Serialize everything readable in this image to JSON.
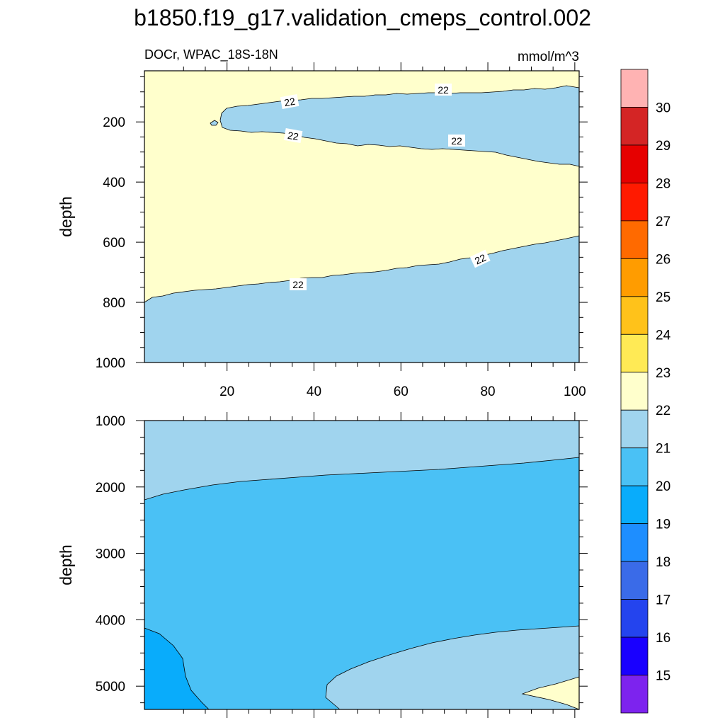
{
  "chart_data": {
    "type": "contour",
    "title": "b1850.f19_g17.validation_cmeps_control.002",
    "left_label": "DOCr, WPAC_18S-18N",
    "units_label": "mmol/m^3",
    "ylabel": "depth",
    "x_ticks": [
      20,
      40,
      60,
      80,
      100
    ],
    "x_range": [
      1,
      101
    ],
    "top_panel": {
      "y_ticks": [
        200,
        400,
        600,
        800,
        1000
      ],
      "y_range": [
        30,
        1000
      ],
      "y_reversed": true
    },
    "bottom_panel": {
      "y_ticks": [
        1000,
        2000,
        3000,
        4000,
        5000
      ],
      "y_range": [
        1000,
        5350
      ],
      "y_reversed": true
    },
    "contour_labels": [
      "22",
      "22",
      "22",
      "22",
      "22",
      "22"
    ],
    "colorbar": {
      "labels": [
        "30",
        "29",
        "28",
        "27",
        "26",
        "25",
        "24",
        "23",
        "22",
        "21",
        "20",
        "19",
        "18",
        "17",
        "16",
        "15"
      ],
      "colors": [
        "#FFB3B3",
        "#D42525",
        "#E60000",
        "#FF1A00",
        "#FF6A00",
        "#FF9C00",
        "#FFC21A",
        "#FFEA55",
        "#FFFFCC",
        "#A0D4EE",
        "#4AC1F5",
        "#09ACFB",
        "#1E8EFF",
        "#3A6BE8",
        "#2444EE",
        "#1900FF",
        "#7D23EE"
      ]
    }
  }
}
